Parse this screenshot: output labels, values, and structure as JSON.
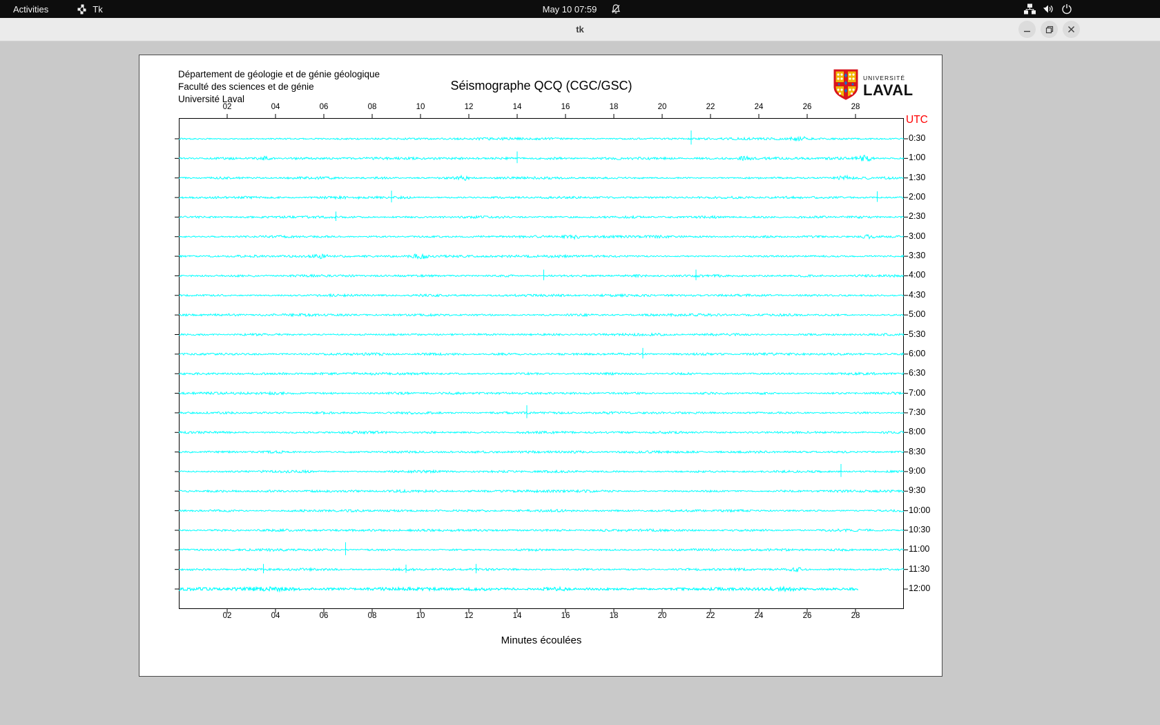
{
  "top_bar": {
    "activities": "Activities",
    "app_menu": "Tk",
    "clock": "May 10 07:59"
  },
  "title_bar": {
    "title": "tk"
  },
  "document": {
    "org_line1": "Département de géologie et de génie géologique",
    "org_line2": "Faculté des sciences et de génie",
    "org_line3": "Université Laval",
    "logo_top": "UNIVERSITÉ",
    "logo_bottom": "LAVAL"
  },
  "chart_data": {
    "type": "line",
    "title": "Séismographe QCQ (CGC/GSC)",
    "xlabel": "Minutes écoulées",
    "right_axis_title": "UTC",
    "x_tick_labels": [
      "02",
      "04",
      "06",
      "08",
      "10",
      "12",
      "14",
      "16",
      "18",
      "20",
      "22",
      "24",
      "26",
      "28"
    ],
    "x_range_minutes": [
      0,
      30
    ],
    "minutes_per_row": 30,
    "trace_color": "#00ffff",
    "utc_label_color": "#ff0000",
    "grid": false,
    "rows": [
      {
        "time": "0:30",
        "end_minute": 30,
        "events": [
          {
            "minute": 21.2,
            "type": "spike",
            "amplitude": 12
          },
          {
            "minute": 25.7,
            "type": "blob",
            "amplitude": 2.5
          }
        ]
      },
      {
        "time": "1:00",
        "end_minute": 30,
        "events": [
          {
            "minute": 3.5,
            "type": "blob",
            "amplitude": 2.2
          },
          {
            "minute": 14.0,
            "type": "spike",
            "amplitude": 10
          },
          {
            "minute": 23.4,
            "type": "blob",
            "amplitude": 2.2
          },
          {
            "minute": 28.4,
            "type": "blob",
            "amplitude": 2.8
          }
        ]
      },
      {
        "time": "1:30",
        "end_minute": 30,
        "events": [
          {
            "minute": 11.8,
            "type": "blob",
            "amplitude": 2.6
          },
          {
            "minute": 27.5,
            "type": "blob",
            "amplitude": 2.8
          }
        ]
      },
      {
        "time": "2:00",
        "end_minute": 30,
        "events": [
          {
            "minute": 8.8,
            "type": "spike",
            "amplitude": 10
          },
          {
            "minute": 28.9,
            "type": "spike",
            "amplitude": 9
          }
        ]
      },
      {
        "time": "2:30",
        "end_minute": 30,
        "events": [
          {
            "minute": 6.5,
            "type": "spike",
            "amplitude": 8
          }
        ]
      },
      {
        "time": "3:00",
        "end_minute": 30,
        "events": [
          {
            "minute": 16.3,
            "type": "blob",
            "amplitude": 2.4
          },
          {
            "minute": 28.5,
            "type": "blob",
            "amplitude": 2.0
          }
        ]
      },
      {
        "time": "3:30",
        "end_minute": 30,
        "events": [
          {
            "minute": 5.9,
            "type": "blob",
            "amplitude": 2.0
          },
          {
            "minute": 10.0,
            "type": "blob",
            "amplitude": 3.0
          }
        ]
      },
      {
        "time": "4:00",
        "end_minute": 30,
        "events": [
          {
            "minute": 15.1,
            "type": "spike",
            "amplitude": 9
          },
          {
            "minute": 21.4,
            "type": "spike",
            "amplitude": 9
          }
        ]
      },
      {
        "time": "4:30",
        "end_minute": 30,
        "events": []
      },
      {
        "time": "5:00",
        "end_minute": 30,
        "events": []
      },
      {
        "time": "5:30",
        "end_minute": 30,
        "events": []
      },
      {
        "time": "6:00",
        "end_minute": 30,
        "events": [
          {
            "minute": 19.2,
            "type": "spike",
            "amplitude": 9
          }
        ]
      },
      {
        "time": "6:30",
        "end_minute": 30,
        "events": []
      },
      {
        "time": "7:00",
        "end_minute": 30,
        "events": []
      },
      {
        "time": "7:30",
        "end_minute": 30,
        "events": [
          {
            "minute": 14.4,
            "type": "spike",
            "amplitude": 11
          }
        ]
      },
      {
        "time": "8:00",
        "end_minute": 30,
        "events": []
      },
      {
        "time": "8:30",
        "end_minute": 30,
        "events": []
      },
      {
        "time": "9:00",
        "end_minute": 30,
        "events": [
          {
            "minute": 27.4,
            "type": "spike",
            "amplitude": 11
          }
        ]
      },
      {
        "time": "9:30",
        "end_minute": 30,
        "events": []
      },
      {
        "time": "10:00",
        "end_minute": 30,
        "events": []
      },
      {
        "time": "10:30",
        "end_minute": 30,
        "events": []
      },
      {
        "time": "11:00",
        "end_minute": 30,
        "events": [
          {
            "minute": 6.9,
            "type": "spike",
            "amplitude": 11
          }
        ]
      },
      {
        "time": "11:30",
        "end_minute": 30,
        "events": [
          {
            "minute": 3.5,
            "type": "spike",
            "amplitude": 8
          },
          {
            "minute": 9.4,
            "type": "spike",
            "amplitude": 7
          },
          {
            "minute": 12.3,
            "type": "spike",
            "amplitude": 8
          },
          {
            "minute": 25.6,
            "type": "blob",
            "amplitude": 2.5
          }
        ]
      },
      {
        "time": "12:00",
        "end_minute": 28.1,
        "thick": true,
        "events": []
      }
    ]
  }
}
